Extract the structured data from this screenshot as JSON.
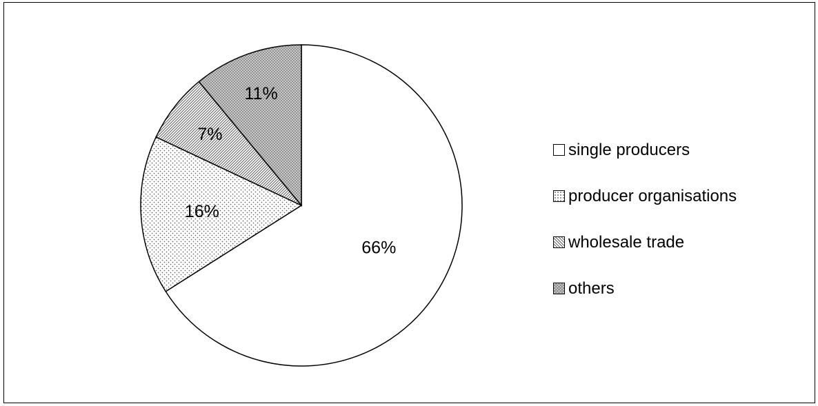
{
  "chart_data": {
    "type": "pie",
    "slices": [
      {
        "label": "single producers",
        "value": 66,
        "display": "66%",
        "pattern": "solid",
        "color": "#ffffff"
      },
      {
        "label": "producer organisations",
        "value": 16,
        "display": "16%",
        "pattern": "dots",
        "color": "#ffffff"
      },
      {
        "label": "wholesale trade",
        "value": 7,
        "display": "7%",
        "pattern": "diagonal-lines",
        "color": "#ffffff"
      },
      {
        "label": "others",
        "value": 11,
        "display": "11%",
        "pattern": "crosshatch",
        "color": "#c8c8c8"
      }
    ],
    "start": "12 o'clock",
    "direction": "clockwise",
    "legend_position": "right",
    "title": "",
    "outline_color": "#000000"
  }
}
